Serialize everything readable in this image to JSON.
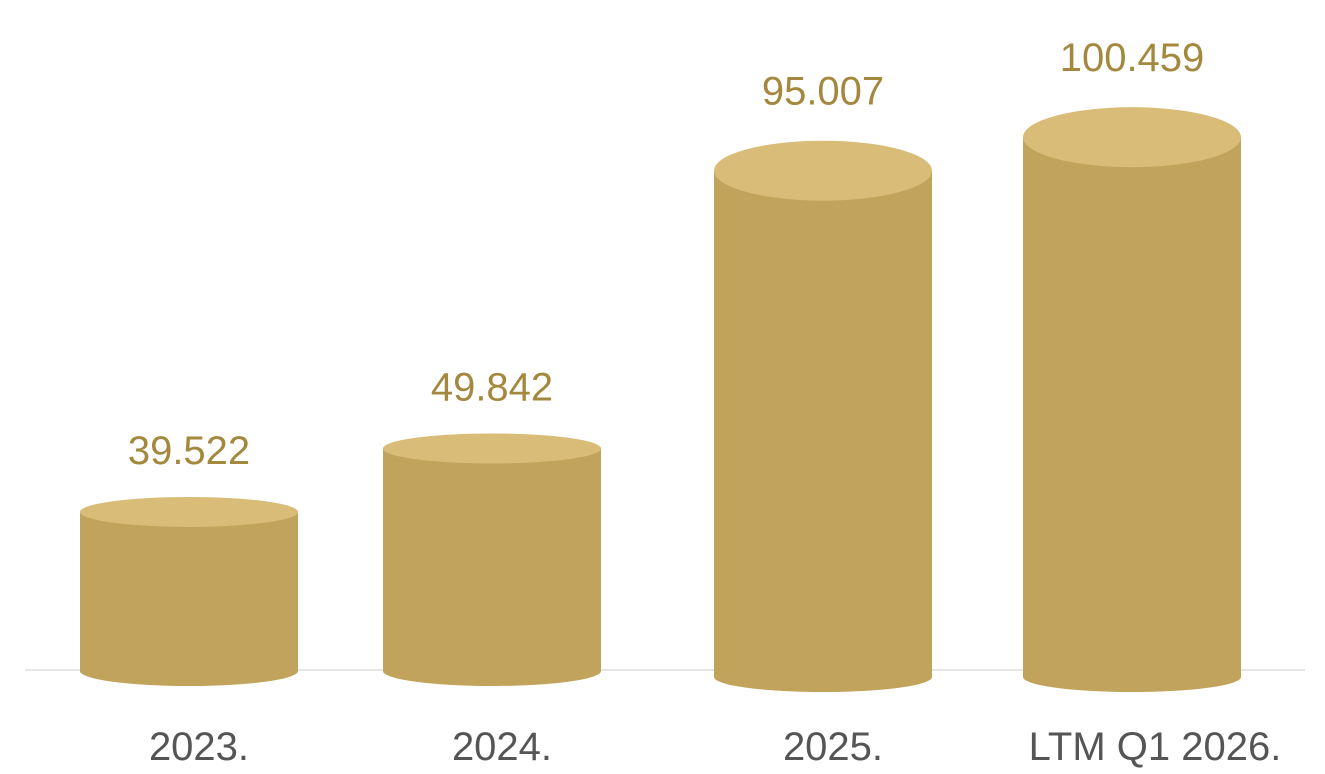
{
  "chart_data": {
    "type": "bar",
    "style": "3d-cylinder",
    "categories": [
      "2023.",
      "2024.",
      "2025.",
      "LTM Q1 2026."
    ],
    "values": [
      39.522,
      49.842,
      95.007,
      100.459
    ],
    "value_labels": [
      "39.522",
      "49.842",
      "95.007",
      "100.459"
    ],
    "title": "",
    "xlabel": "",
    "ylabel": "",
    "ylim": [
      0,
      105
    ],
    "grid": false,
    "legend": "none"
  },
  "colors": {
    "bar_body": "#c2a35c",
    "bar_top": "#d8bc78",
    "value_label": "#a4883e",
    "category_label": "#555555",
    "baseline": "#e6e6e6",
    "background": "#ffffff"
  }
}
